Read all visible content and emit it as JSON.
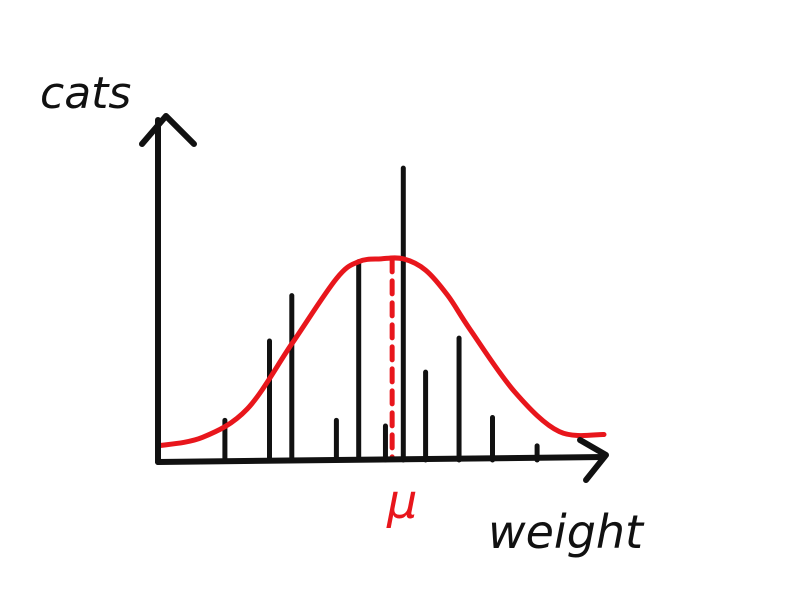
{
  "chart_data": {
    "type": "bar",
    "title": "",
    "xlabel": "weight",
    "ylabel": "cats",
    "xlim": [
      0,
      20
    ],
    "ylim": [
      0,
      12
    ],
    "x": [
      3,
      5,
      6,
      8,
      9,
      10.2,
      11,
      12,
      13.5,
      15,
      17
    ],
    "values": [
      1.4,
      4.2,
      5.8,
      1.4,
      7,
      1.2,
      10.3,
      3.1,
      4.3,
      1.5,
      0.5
    ],
    "curve": {
      "x": [
        0,
        2,
        4,
        6,
        8,
        9,
        10,
        11,
        12,
        13,
        14,
        16,
        18,
        20
      ],
      "y": [
        0.5,
        0.8,
        1.8,
        4.1,
        6.4,
        7.0,
        7.1,
        7.1,
        6.7,
        5.8,
        4.6,
        2.4,
        1.0,
        0.9
      ]
    },
    "mean": {
      "label": "μ",
      "x": 10.5
    },
    "colors": {
      "ink": "#111111",
      "curve": "#e8161c"
    }
  }
}
